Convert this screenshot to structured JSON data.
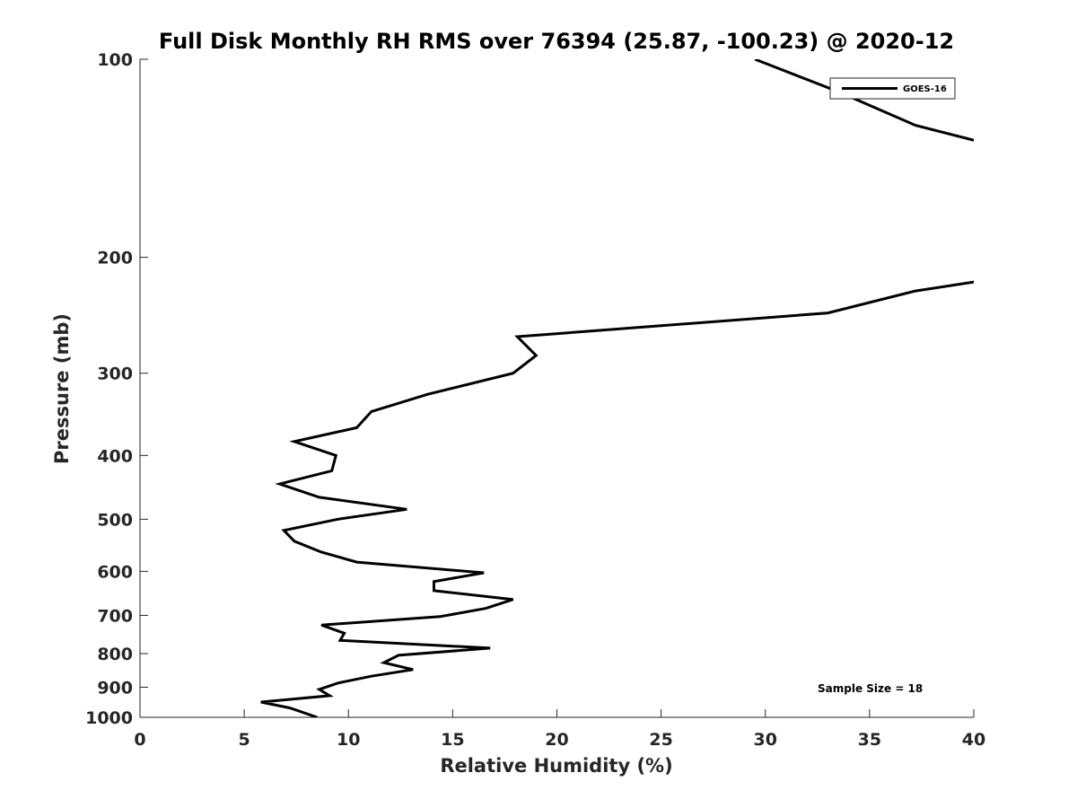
{
  "chart_data": {
    "type": "line",
    "title": "Full Disk Monthly RH RMS over 76394 (25.87, -100.23) @ 2020-12",
    "xlabel": "Relative Humidity (%)",
    "ylabel": "Pressure (mb)",
    "xlim": [
      0,
      40
    ],
    "ylim": [
      100,
      1000
    ],
    "yscale": "log",
    "y_reversed": true,
    "grid": false,
    "legend_position": "top-right",
    "x_ticks": [
      "0",
      "5",
      "10",
      "15",
      "20",
      "25",
      "30",
      "35",
      "40"
    ],
    "y_ticks": [
      "100",
      "200",
      "300",
      "400",
      "500",
      "600",
      "700",
      "800",
      "900",
      "1000"
    ],
    "annotation": "Sample Size = 18",
    "series": [
      {
        "name": "GOES-16",
        "color": "#000000",
        "points": [
          [
            29.5,
            100
          ],
          [
            33.5,
            112
          ],
          [
            37.2,
            126
          ],
          [
            40.5,
            134
          ],
          [
            40.5,
            218
          ],
          [
            40.0,
            218
          ],
          [
            37.2,
            225
          ],
          [
            33.0,
            243
          ],
          [
            18.1,
            264
          ],
          [
            19.0,
            282
          ],
          [
            17.9,
            300
          ],
          [
            13.8,
            323
          ],
          [
            11.1,
            343
          ],
          [
            10.4,
            363
          ],
          [
            7.4,
            381
          ],
          [
            9.4,
            400
          ],
          [
            9.2,
            422
          ],
          [
            6.7,
            442
          ],
          [
            8.6,
            463
          ],
          [
            12.8,
            483
          ],
          [
            9.5,
            500
          ],
          [
            6.9,
            520
          ],
          [
            7.4,
            540
          ],
          [
            8.7,
            561
          ],
          [
            10.4,
            581
          ],
          [
            16.5,
            603
          ],
          [
            14.1,
            622
          ],
          [
            14.1,
            642
          ],
          [
            17.9,
            662
          ],
          [
            16.6,
            683
          ],
          [
            14.4,
            703
          ],
          [
            8.7,
            724
          ],
          [
            9.8,
            745
          ],
          [
            9.6,
            764
          ],
          [
            16.8,
            785
          ],
          [
            12.4,
            805
          ],
          [
            11.7,
            826
          ],
          [
            13.1,
            846
          ],
          [
            11.1,
            866
          ],
          [
            9.5,
            887
          ],
          [
            8.6,
            907
          ],
          [
            9.1,
            927
          ],
          [
            5.8,
            948
          ],
          [
            7.2,
            968
          ],
          [
            8.5,
            1000
          ]
        ]
      }
    ]
  }
}
